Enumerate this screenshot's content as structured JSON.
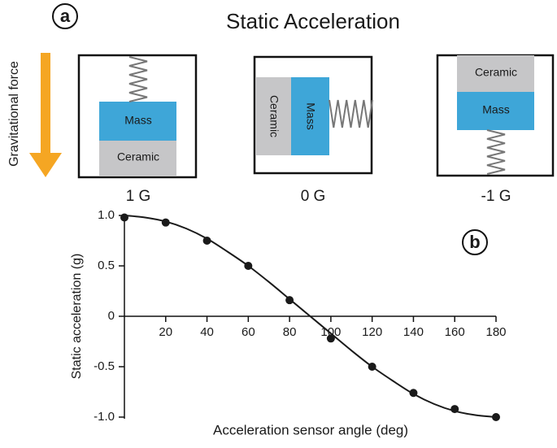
{
  "panel_a": {
    "label": "a",
    "title": "Static Acceleration",
    "force_label": "Gravitational force",
    "states": [
      {
        "caption": "1 G",
        "mass": "Mass",
        "ceramic": "Ceramic"
      },
      {
        "caption": "0 G",
        "mass": "Mass",
        "ceramic": "Ceramic"
      },
      {
        "caption": "-1 G",
        "mass": "Mass",
        "ceramic": "Ceramic"
      }
    ]
  },
  "chart_data": {
    "type": "scatter",
    "panel_label": "b",
    "xlabel": "Acceleration sensor angle (deg)",
    "ylabel": "Static acceleration (g)",
    "xlim": [
      0,
      180
    ],
    "ylim": [
      -1,
      1
    ],
    "xticks": [
      20,
      40,
      60,
      80,
      100,
      120,
      140,
      160,
      180
    ],
    "yticks": [
      {
        "value": 1,
        "label": "1.0"
      },
      0.5,
      0,
      -0.5,
      {
        "value": -1,
        "label": "-1.0"
      }
    ],
    "series": [
      {
        "mode": "markers",
        "color": "#1a1a1a",
        "x": [
          0,
          20,
          40,
          60,
          80,
          100,
          120,
          140,
          160,
          180
        ],
        "values": [
          0.98,
          0.93,
          0.75,
          0.5,
          0.16,
          -0.22,
          -0.5,
          -0.76,
          -0.92,
          -1.0
        ]
      },
      {
        "mode": "line",
        "color": "#1a1a1a",
        "x": [
          0,
          10,
          20,
          30,
          40,
          50,
          60,
          70,
          80,
          90,
          100,
          110,
          120,
          130,
          140,
          150,
          160,
          170,
          180
        ],
        "values": [
          1,
          0.98,
          0.94,
          0.87,
          0.77,
          0.64,
          0.5,
          0.34,
          0.17,
          0,
          -0.17,
          -0.34,
          -0.5,
          -0.64,
          -0.77,
          -0.87,
          -0.94,
          -0.98,
          -1
        ]
      }
    ]
  }
}
